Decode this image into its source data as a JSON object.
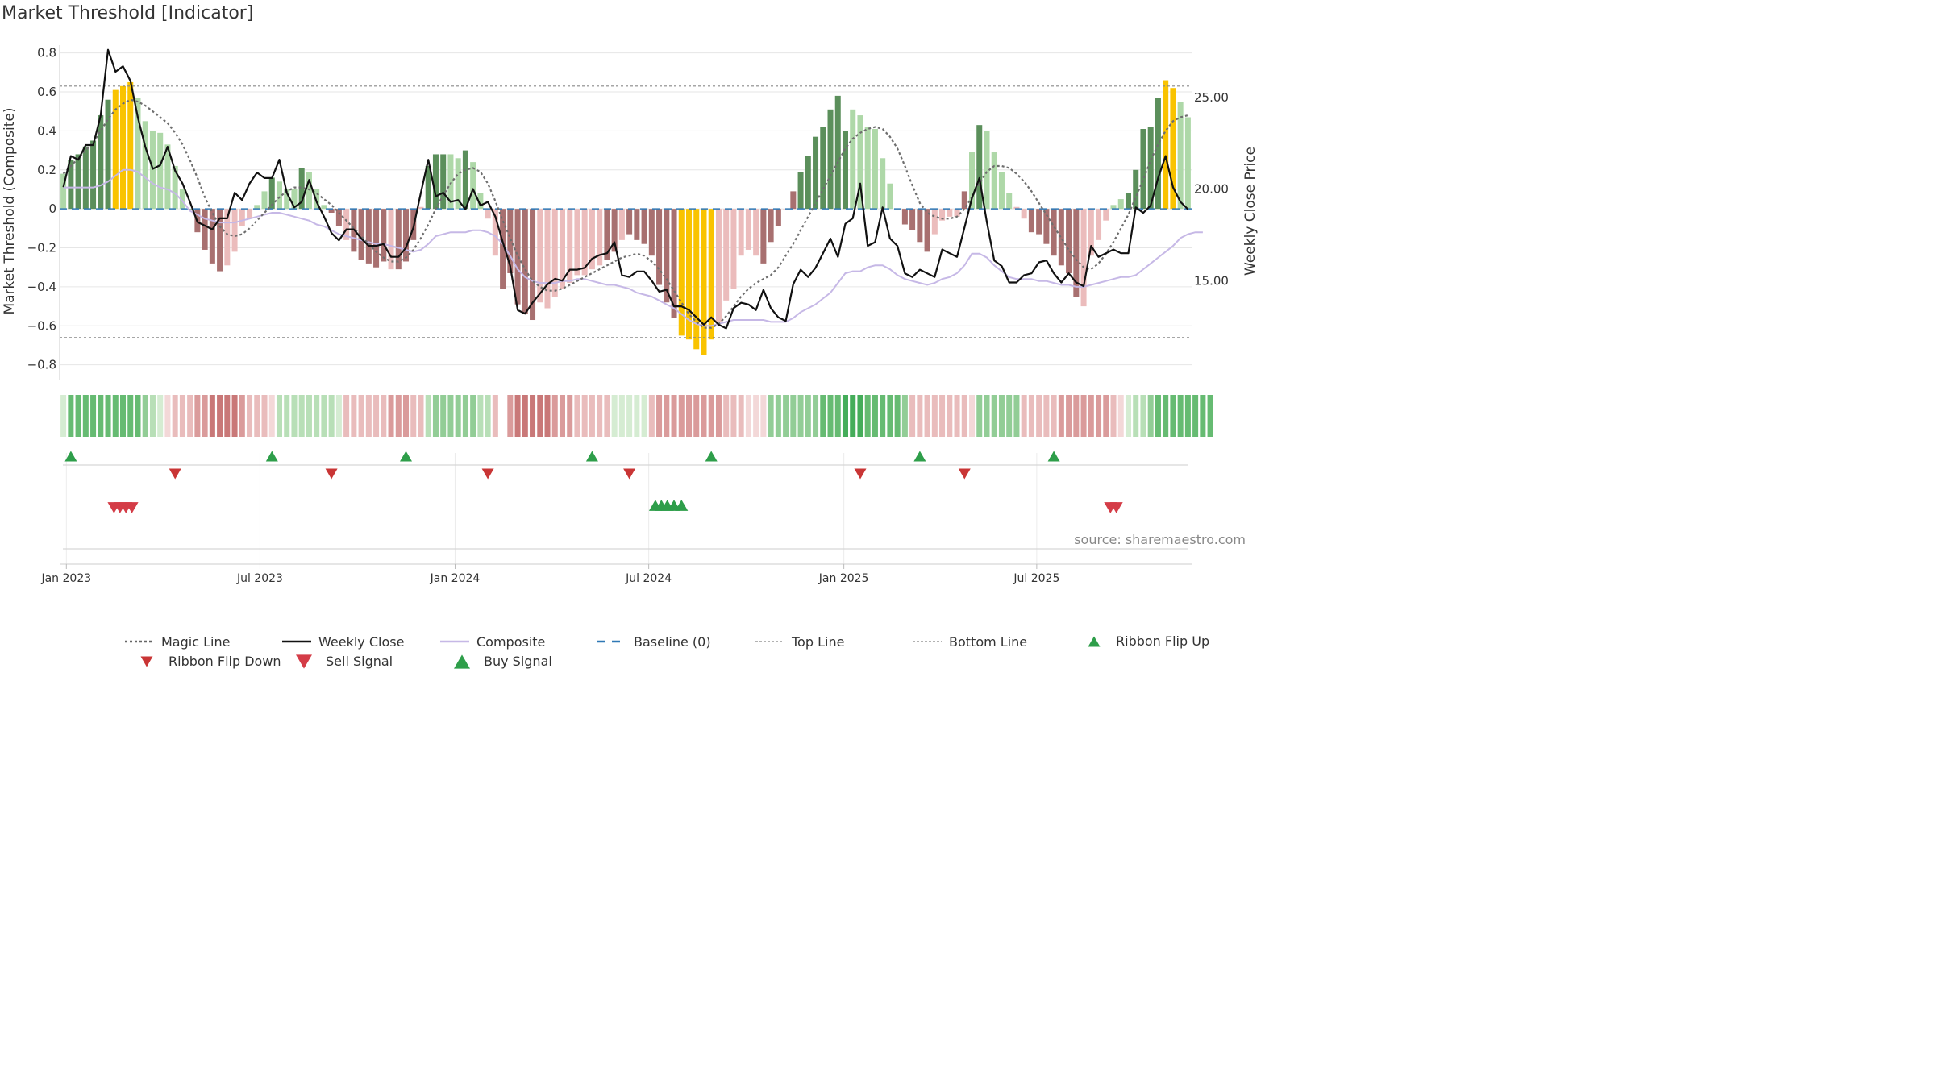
{
  "chart_data": {
    "type": "bar",
    "title": "Market Threshold [Indicator]",
    "ylabel": "Market Threshold (Composite)",
    "y2label": "Weekly Close Price",
    "source": "source: sharemaestro.com",
    "ylim": [
      -0.88,
      0.84
    ],
    "y_ticks": [
      0.8,
      0.6,
      0.4,
      0.2,
      0,
      -0.2,
      -0.4,
      -0.6,
      -0.8
    ],
    "y_tick_labels": [
      "0.8",
      "0.6",
      "0.4",
      "0.2",
      "0",
      "−0.2",
      "−0.4",
      "−0.6",
      "−0.8"
    ],
    "y2lim": [
      9.56,
      27.85
    ],
    "y2_ticks": [
      25,
      20,
      15
    ],
    "y2_tick_labels": [
      "25.00",
      "20.00",
      "15.00"
    ],
    "x_tick_weeks": [
      0.4,
      26.4,
      52.6,
      78.6,
      104.8,
      130.7
    ],
    "x_tick_labels": [
      "Jan 2023",
      "Jul 2023",
      "Jan 2024",
      "Jul 2024",
      "Jan 2025",
      "Jul 2025"
    ],
    "top_line": 0.63,
    "bottom_line": -0.66,
    "baseline": 0,
    "composite_bars": [
      0.18,
      0.25,
      0.28,
      0.32,
      0.35,
      0.48,
      0.56,
      0.61,
      0.63,
      0.65,
      0.57,
      0.45,
      0.4,
      0.39,
      0.33,
      0.22,
      0.1,
      0,
      -0.12,
      -0.21,
      -0.28,
      -0.32,
      -0.29,
      -0.22,
      -0.09,
      -0.05,
      0.02,
      0.09,
      0.16,
      0.14,
      0.1,
      0.1,
      0.21,
      0.19,
      0.1,
      0.02,
      -0.02,
      -0.09,
      -0.16,
      -0.22,
      -0.26,
      -0.28,
      -0.3,
      -0.27,
      -0.31,
      -0.31,
      -0.27,
      -0.16,
      0.01,
      0.22,
      0.28,
      0.28,
      0.28,
      0.26,
      0.3,
      0.24,
      0.08,
      -0.05,
      -0.24,
      -0.41,
      -0.33,
      -0.49,
      -0.54,
      -0.57,
      -0.48,
      -0.51,
      -0.45,
      -0.41,
      -0.38,
      -0.34,
      -0.34,
      -0.31,
      -0.29,
      -0.26,
      -0.22,
      -0.16,
      -0.13,
      -0.16,
      -0.18,
      -0.24,
      -0.39,
      -0.48,
      -0.56,
      -0.65,
      -0.67,
      -0.72,
      -0.75,
      -0.67,
      -0.58,
      -0.47,
      -0.41,
      -0.24,
      -0.21,
      -0.24,
      -0.28,
      -0.17,
      -0.09,
      0,
      0.09,
      0.19,
      0.27,
      0.37,
      0.42,
      0.51,
      0.58,
      0.4,
      0.51,
      0.48,
      0.42,
      0.41,
      0.26,
      0.13,
      0,
      -0.08,
      -0.11,
      -0.17,
      -0.22,
      -0.13,
      -0.06,
      -0.04,
      -0.04,
      0.09,
      0.29,
      0.43,
      0.4,
      0.29,
      0.19,
      0.08,
      0.01,
      -0.05,
      -0.12,
      -0.13,
      -0.18,
      -0.24,
      -0.29,
      -0.33,
      -0.45,
      -0.5,
      -0.24,
      -0.16,
      -0.06,
      0.02,
      0.05,
      0.08,
      0.2,
      0.41,
      0.42,
      0.57,
      0.66,
      0.62,
      0.55,
      0.47
    ],
    "bar_phase": [
      1,
      0,
      0,
      0,
      0,
      0,
      0,
      2,
      2,
      2,
      1,
      1,
      1,
      1,
      1,
      1,
      1,
      0,
      3,
      3,
      3,
      3,
      4,
      4,
      4,
      4,
      1,
      1,
      0,
      1,
      1,
      1,
      0,
      1,
      1,
      1,
      3,
      3,
      4,
      3,
      3,
      3,
      3,
      3,
      4,
      3,
      3,
      3,
      4,
      0,
      0,
      0,
      1,
      1,
      0,
      1,
      1,
      4,
      4,
      3,
      3,
      3,
      3,
      3,
      4,
      4,
      4,
      4,
      4,
      4,
      4,
      4,
      4,
      3,
      3,
      4,
      3,
      3,
      3,
      3,
      3,
      3,
      3,
      2,
      2,
      2,
      2,
      2,
      4,
      4,
      4,
      4,
      4,
      4,
      3,
      3,
      3,
      4,
      3,
      0,
      0,
      0,
      0,
      0,
      0,
      0,
      1,
      1,
      1,
      1,
      1,
      1,
      4,
      3,
      3,
      3,
      3,
      4,
      4,
      4,
      4,
      3,
      1,
      0,
      1,
      1,
      1,
      1,
      4,
      4,
      3,
      3,
      3,
      3,
      3,
      3,
      3,
      4,
      4,
      4,
      4,
      1,
      1,
      0,
      0,
      0,
      0,
      0,
      2,
      2,
      1,
      1
    ],
    "magic_line": [
      0.18,
      0.22,
      0.26,
      0.3,
      0.34,
      0.4,
      0.46,
      0.51,
      0.54,
      0.56,
      0.55,
      0.53,
      0.5,
      0.47,
      0.44,
      0.39,
      0.33,
      0.25,
      0.16,
      0.06,
      -0.02,
      -0.09,
      -0.13,
      -0.14,
      -0.13,
      -0.1,
      -0.06,
      -0.02,
      0.02,
      0.06,
      0.09,
      0.11,
      0.11,
      0.1,
      0.08,
      0.05,
      0.02,
      -0.02,
      -0.06,
      -0.1,
      -0.14,
      -0.18,
      -0.22,
      -0.25,
      -0.27,
      -0.27,
      -0.25,
      -0.21,
      -0.15,
      -0.08,
      0,
      0.07,
      0.13,
      0.18,
      0.2,
      0.21,
      0.19,
      0.13,
      0.04,
      -0.06,
      -0.15,
      -0.24,
      -0.31,
      -0.37,
      -0.4,
      -0.42,
      -0.42,
      -0.41,
      -0.39,
      -0.37,
      -0.35,
      -0.33,
      -0.31,
      -0.29,
      -0.27,
      -0.25,
      -0.24,
      -0.23,
      -0.24,
      -0.27,
      -0.31,
      -0.36,
      -0.42,
      -0.48,
      -0.54,
      -0.58,
      -0.61,
      -0.61,
      -0.59,
      -0.55,
      -0.5,
      -0.45,
      -0.41,
      -0.38,
      -0.36,
      -0.34,
      -0.3,
      -0.24,
      -0.18,
      -0.11,
      -0.04,
      0.03,
      0.1,
      0.17,
      0.24,
      0.31,
      0.36,
      0.39,
      0.41,
      0.42,
      0.41,
      0.37,
      0.31,
      0.22,
      0.12,
      0.03,
      -0.02,
      -0.04,
      -0.05,
      -0.05,
      -0.04,
      0,
      0.06,
      0.13,
      0.19,
      0.22,
      0.22,
      0.21,
      0.18,
      0.14,
      0.09,
      0.03,
      -0.03,
      -0.09,
      -0.15,
      -0.21,
      -0.26,
      -0.3,
      -0.31,
      -0.28,
      -0.23,
      -0.17,
      -0.1,
      -0.03,
      0.06,
      0.15,
      0.25,
      0.33,
      0.4,
      0.45,
      0.47,
      0.48
    ],
    "composite_line": [
      0.11,
      0.11,
      0.11,
      0.11,
      0.11,
      0.12,
      0.14,
      0.17,
      0.2,
      0.2,
      0.19,
      0.16,
      0.13,
      0.11,
      0.1,
      0.08,
      0.04,
      -0.01,
      -0.03,
      -0.05,
      -0.06,
      -0.07,
      -0.07,
      -0.07,
      -0.06,
      -0.05,
      -0.04,
      -0.03,
      -0.02,
      -0.02,
      -0.03,
      -0.04,
      -0.05,
      -0.06,
      -0.08,
      -0.09,
      -0.11,
      -0.13,
      -0.14,
      -0.15,
      -0.16,
      -0.17,
      -0.18,
      -0.18,
      -0.19,
      -0.2,
      -0.21,
      -0.22,
      -0.21,
      -0.18,
      -0.14,
      -0.13,
      -0.12,
      -0.12,
      -0.12,
      -0.11,
      -0.11,
      -0.12,
      -0.14,
      -0.18,
      -0.24,
      -0.31,
      -0.35,
      -0.37,
      -0.38,
      -0.38,
      -0.38,
      -0.37,
      -0.37,
      -0.36,
      -0.36,
      -0.37,
      -0.38,
      -0.39,
      -0.39,
      -0.4,
      -0.41,
      -0.43,
      -0.44,
      -0.45,
      -0.47,
      -0.49,
      -0.51,
      -0.54,
      -0.57,
      -0.59,
      -0.6,
      -0.6,
      -0.59,
      -0.58,
      -0.57,
      -0.57,
      -0.57,
      -0.57,
      -0.57,
      -0.58,
      -0.58,
      -0.58,
      -0.56,
      -0.53,
      -0.51,
      -0.49,
      -0.46,
      -0.43,
      -0.38,
      -0.33,
      -0.32,
      -0.32,
      -0.3,
      -0.29,
      -0.29,
      -0.31,
      -0.34,
      -0.36,
      -0.37,
      -0.38,
      -0.39,
      -0.38,
      -0.36,
      -0.35,
      -0.33,
      -0.29,
      -0.23,
      -0.23,
      -0.25,
      -0.29,
      -0.32,
      -0.35,
      -0.36,
      -0.36,
      -0.36,
      -0.37,
      -0.37,
      -0.38,
      -0.39,
      -0.39,
      -0.4,
      -0.4,
      -0.39,
      -0.38,
      -0.37,
      -0.36,
      -0.35,
      -0.35,
      -0.34,
      -0.31,
      -0.28,
      -0.25,
      -0.22,
      -0.19,
      -0.15,
      -0.13,
      -0.12,
      -0.12
    ],
    "weekly_close": [
      20.1,
      21.8,
      21.6,
      22.4,
      22.4,
      24.0,
      27.6,
      26.4,
      26.7,
      25.9,
      23.9,
      22.3,
      21.1,
      21.3,
      22.3,
      21.0,
      20.3,
      19.3,
      18.2,
      18.0,
      17.8,
      18.4,
      18.4,
      19.8,
      19.4,
      20.3,
      20.9,
      20.6,
      20.6,
      21.6,
      19.8,
      19.0,
      19.3,
      20.5,
      19.3,
      18.5,
      17.6,
      17.2,
      17.8,
      17.8,
      17.3,
      16.9,
      16.9,
      17.0,
      16.3,
      16.3,
      16.8,
      17.9,
      19.8,
      21.6,
      19.6,
      19.8,
      19.3,
      19.4,
      18.9,
      20.0,
      19.1,
      19.3,
      18.5,
      17.1,
      15.8,
      13.4,
      13.2,
      13.8,
      14.3,
      14.8,
      15.1,
      15.0,
      15.6,
      15.6,
      15.7,
      16.2,
      16.4,
      16.5,
      17.1,
      15.3,
      15.2,
      15.5,
      15.5,
      15.0,
      14.4,
      14.5,
      13.6,
      13.6,
      13.4,
      13.0,
      12.6,
      13.0,
      12.6,
      12.4,
      13.5,
      13.8,
      13.7,
      13.4,
      14.5,
      13.5,
      13.0,
      12.8,
      14.8,
      15.6,
      15.2,
      15.7,
      16.5,
      17.3,
      16.3,
      18.1,
      18.4,
      20.3,
      16.9,
      17.1,
      19.0,
      17.3,
      16.9,
      15.4,
      15.2,
      15.6,
      15.4,
      15.2,
      16.7,
      16.5,
      16.3,
      17.9,
      19.5,
      20.6,
      18.2,
      16.1,
      15.8,
      14.9,
      14.9,
      15.3,
      15.4,
      16.0,
      16.1,
      15.4,
      14.9,
      15.4,
      14.9,
      14.7,
      16.9,
      16.3,
      16.5,
      16.7,
      16.5,
      16.5,
      19.0,
      18.7,
      19.1,
      20.6,
      21.8,
      20.1,
      19.3,
      18.9
    ],
    "ribbon_shade": [
      0.5,
      3,
      3,
      3,
      3,
      3,
      3,
      3,
      3,
      3,
      3,
      2,
      1,
      0.5,
      -0.5,
      -1,
      -1,
      -1,
      -2,
      -2,
      -3,
      -3,
      -3,
      -3,
      -2,
      -1,
      -1,
      -1,
      -0.5,
      1,
      1,
      1,
      1,
      1,
      1,
      1,
      1,
      0.5,
      -1,
      -1,
      -1,
      -1,
      -1,
      -1,
      -2,
      -2,
      -2,
      -1,
      -1,
      1,
      2,
      2,
      2,
      2,
      2,
      2,
      1,
      1,
      -1,
      -2,
      -2,
      -3,
      -3,
      -3,
      -3,
      -3,
      -2,
      -2,
      -2,
      -1,
      -1,
      -1,
      -1,
      -1,
      0.5,
      0.5,
      0.5,
      0.5,
      0.5,
      -1,
      -2,
      -2,
      -2,
      -2,
      -2,
      -2,
      -2,
      -2,
      -2,
      -1,
      -1,
      -1,
      -0.5,
      -0.5,
      -0.5,
      2,
      2,
      2,
      2,
      2,
      2,
      2,
      3,
      3,
      3,
      4,
      4,
      4,
      3,
      3,
      3,
      3,
      3,
      2,
      -1,
      -1,
      -1,
      -1,
      -1,
      -1,
      -1,
      -1,
      -0.5,
      2,
      2,
      2,
      2,
      2,
      2,
      -1,
      -1,
      -1,
      -1,
      -1,
      -2,
      -2,
      -2,
      -2,
      -2,
      -2,
      -2,
      -1,
      -0.5,
      0.5,
      1,
      1,
      2,
      3,
      3,
      3,
      3,
      3,
      3,
      3,
      3
    ],
    "ribbon_gap_week": 59,
    "ribbon_flip_up_weeks": [
      1,
      28,
      46,
      71,
      87,
      115,
      133
    ],
    "ribbon_flip_down_weeks": [
      15,
      36,
      57,
      76,
      107,
      121
    ],
    "sell_signal_weeks": [
      6.8,
      7.6,
      8.4,
      9.2,
      140.6,
      141.4
    ],
    "buy_signal_weeks": [
      79.5,
      80.3,
      81.1,
      82.0,
      83.0
    ],
    "legend_position": "bottom",
    "legend": [
      {
        "label": "Magic Line",
        "kind": "dotted",
        "color": "#666666"
      },
      {
        "label": "Weekly Close",
        "kind": "solid",
        "color": "#111111"
      },
      {
        "label": "Composite",
        "kind": "solid",
        "color": "#c6b8e6"
      },
      {
        "label": "Baseline (0)",
        "kind": "dashed",
        "color": "#2f78b5"
      },
      {
        "label": "Top Line",
        "kind": "dotted-fine",
        "color": "#999999"
      },
      {
        "label": "Bottom Line",
        "kind": "dotted-fine",
        "color": "#999999"
      },
      {
        "label": "Ribbon Flip Up",
        "kind": "tri-up",
        "color": "#2e9e4a"
      },
      {
        "label": "Ribbon Flip Down",
        "kind": "tri-down",
        "color": "#c93535"
      },
      {
        "label": "Sell Signal",
        "kind": "tri-down-big",
        "color": "#d43c47"
      },
      {
        "label": "Buy Signal",
        "kind": "tri-up-big",
        "color": "#2e9e4a"
      }
    ],
    "colors": {
      "bull_strong": "#5b8f5b",
      "bull_light": "#aed8a8",
      "extreme": "#f9c300",
      "bear_strong": "#a87070",
      "bear_light": "#ebbcbc",
      "grid": "#e6e6e6",
      "axis": "#cccccc"
    }
  }
}
